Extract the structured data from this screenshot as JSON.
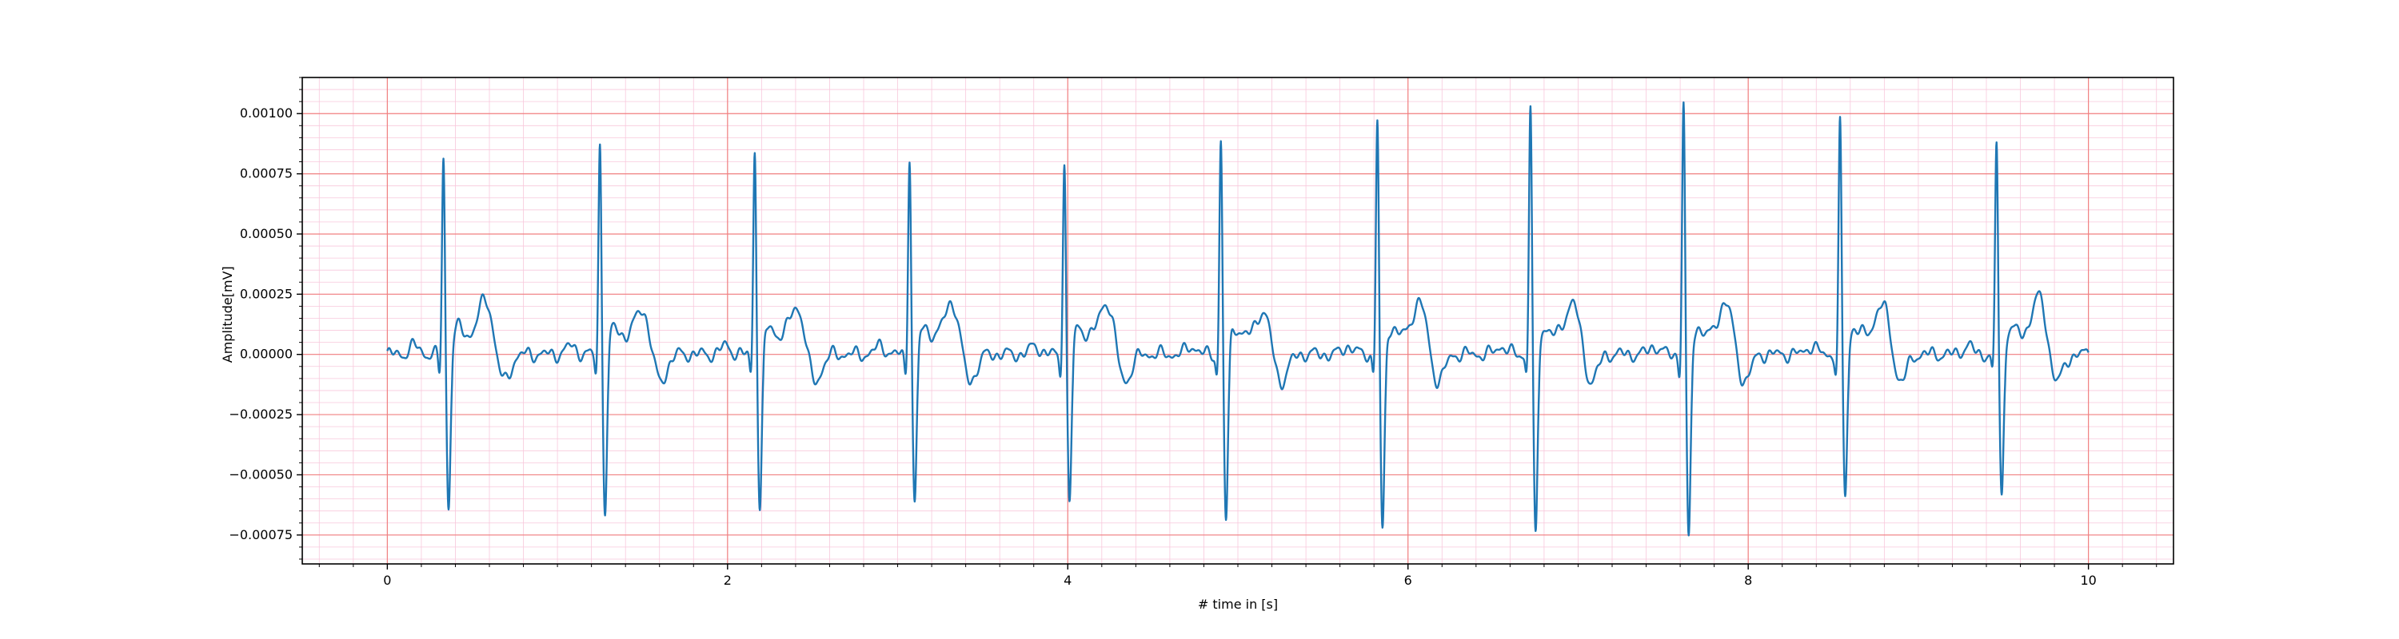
{
  "chart_data": {
    "type": "line",
    "title": "",
    "xlabel": "# time in [s]",
    "ylabel": "Amplitude[mV]",
    "xlim": [
      -0.5,
      10.5
    ],
    "ylim": [
      -0.00087,
      0.00115
    ],
    "xticks": [
      0,
      2,
      4,
      6,
      8,
      10
    ],
    "xtick_labels": [
      "0",
      "2",
      "4",
      "6",
      "8",
      "10"
    ],
    "yticks": [
      -0.00075,
      -0.0005,
      -0.00025,
      0,
      0.00025,
      0.0005,
      0.00075,
      0.001
    ],
    "ytick_labels": [
      "−0.00075",
      "−0.00050",
      "−0.00025",
      "0.00000",
      "0.00025",
      "0.00050",
      "0.00075",
      "0.00100"
    ],
    "grid": {
      "major": true,
      "minor": true
    },
    "colors": {
      "line": "#1f77b4",
      "major_grid": "#f08080",
      "minor_grid": "#f8c8dc",
      "frame": "#000000"
    },
    "series": [
      {
        "beats": [
          {
            "r_time": 0.33,
            "r_peak": 0.00083,
            "s_trough": -0.00063,
            "t_peak": 0.00021
          },
          {
            "r_time": 1.25,
            "r_peak": 0.00089,
            "s_trough": -0.00065,
            "t_peak": 0.00017
          },
          {
            "r_time": 2.16,
            "r_peak": 0.00087,
            "s_trough": -0.00064,
            "t_peak": 0.00018
          },
          {
            "r_time": 3.07,
            "r_peak": 0.00084,
            "s_trough": -0.00062,
            "t_peak": 0.0002
          },
          {
            "r_time": 3.98,
            "r_peak": 0.00082,
            "s_trough": -0.00062,
            "t_peak": 0.0002
          },
          {
            "r_time": 4.9,
            "r_peak": 0.0009,
            "s_trough": -0.00069,
            "t_peak": 0.00016
          },
          {
            "r_time": 5.82,
            "r_peak": 0.00099,
            "s_trough": -0.00074,
            "t_peak": 0.0002
          },
          {
            "r_time": 6.72,
            "r_peak": 0.00106,
            "s_trough": -0.00077,
            "t_peak": 0.0002
          },
          {
            "r_time": 7.62,
            "r_peak": 0.00106,
            "s_trough": -0.00078,
            "t_peak": 0.0002
          },
          {
            "r_time": 8.54,
            "r_peak": 0.00097,
            "s_trough": -0.00059,
            "t_peak": 0.00019
          },
          {
            "r_time": 9.46,
            "r_peak": 0.00089,
            "s_trough": -0.00059,
            "t_peak": 0.00022
          }
        ],
        "x_range": [
          0,
          10
        ]
      }
    ]
  }
}
